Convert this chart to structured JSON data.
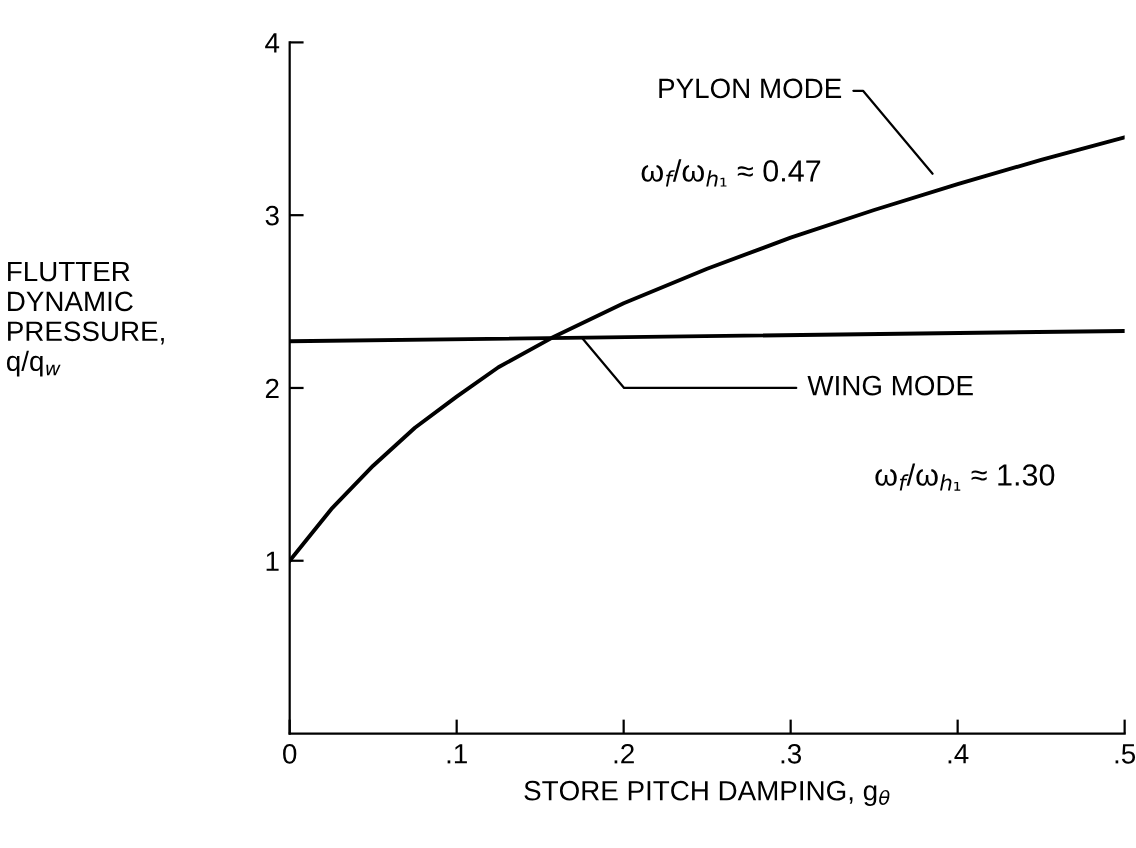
{
  "chart_data": {
    "type": "line",
    "xlabel": "STORE PITCH DAMPING, g$_{θ}$",
    "ylabel": "FLUTTER\nDYNAMIC\nPRESSURE,\nq/q$_{w}$",
    "series": [
      {
        "name": "PYLON MODE",
        "color": "#000000",
        "x": [
          0,
          0.025,
          0.05,
          0.075,
          0.1,
          0.125,
          0.157,
          0.2,
          0.25,
          0.3,
          0.35,
          0.4,
          0.45,
          0.5
        ],
        "values": [
          1.0,
          1.3,
          1.55,
          1.77,
          1.95,
          2.12,
          2.29,
          2.49,
          2.69,
          2.87,
          3.03,
          3.18,
          3.32,
          3.45
        ]
      },
      {
        "name": "WING MODE",
        "color": "#000000",
        "x": [
          0,
          0.5
        ],
        "values": [
          2.27,
          2.33
        ]
      }
    ],
    "annotations": [
      "ω$_{f}$/ω$_{h₁}$ ≈ 0.47",
      "ω$_{f}$/ω$_{h₁}$ ≈ 1.30"
    ],
    "xlim": [
      0,
      0.5
    ],
    "ylim": [
      0,
      4
    ],
    "xticks": [
      0,
      {
        "value": 0.1,
        "label": ".1"
      },
      {
        "value": 0.2,
        "label": ".2"
      },
      {
        "value": 0.3,
        "label": ".3"
      },
      {
        "value": 0.4,
        "label": ".4"
      },
      {
        "value": 0.5,
        "label": ".5"
      }
    ],
    "yticks": [
      1,
      2,
      3,
      4
    ],
    "grid": false,
    "legend": false,
    "marker": "none",
    "line_style": "solid"
  }
}
